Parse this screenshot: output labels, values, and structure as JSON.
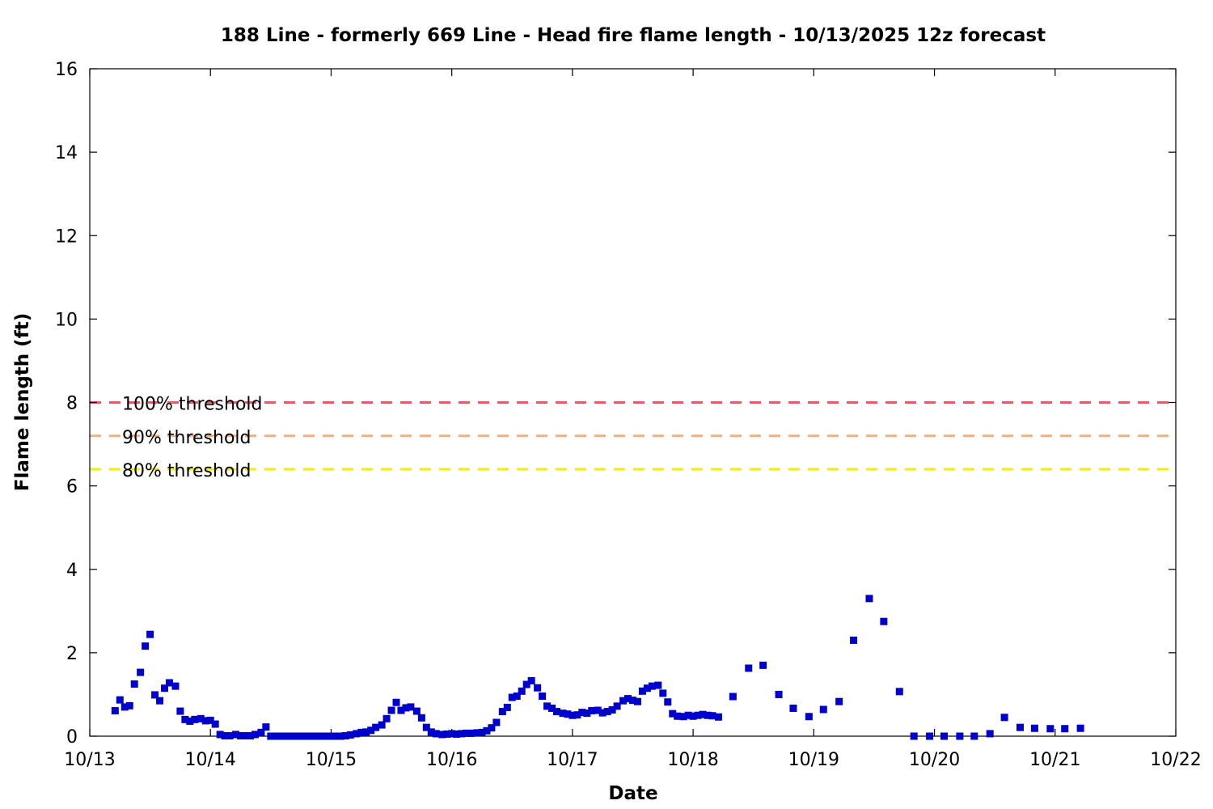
{
  "chart_data": {
    "type": "scatter",
    "title": "188 Line - formerly 669 Line - Head fire flame length - 10/13/2025 12z forecast",
    "xlabel": "Date",
    "ylabel": "Flame length (ft)",
    "xlim": [
      0,
      9
    ],
    "ylim": [
      0,
      16
    ],
    "x_ticks": [
      0,
      1,
      2,
      3,
      4,
      5,
      6,
      7,
      8,
      9
    ],
    "x_tick_labels": [
      "10/13",
      "10/14",
      "10/15",
      "10/16",
      "10/17",
      "10/18",
      "10/19",
      "10/20",
      "10/21",
      "10/22"
    ],
    "y_ticks": [
      0,
      2,
      4,
      6,
      8,
      10,
      12,
      14,
      16
    ],
    "y_tick_labels": [
      "0",
      "2",
      "4",
      "6",
      "8",
      "10",
      "12",
      "14",
      "16"
    ],
    "grid": false,
    "point_color": "#0000cc",
    "thresholds": [
      {
        "label": "100% threshold",
        "value": 8.0,
        "color": "#e05c6e"
      },
      {
        "label": "90% threshold",
        "value": 7.2,
        "color": "#f4b07a"
      },
      {
        "label": "80% threshold",
        "value": 6.4,
        "color": "#f0f000"
      }
    ],
    "points": [
      [
        0.21,
        0.61
      ],
      [
        0.25,
        0.87
      ],
      [
        0.29,
        0.7
      ],
      [
        0.33,
        0.73
      ],
      [
        0.37,
        1.25
      ],
      [
        0.42,
        1.53
      ],
      [
        0.46,
        2.16
      ],
      [
        0.5,
        2.44
      ],
      [
        0.54,
        0.99
      ],
      [
        0.58,
        0.85
      ],
      [
        0.62,
        1.15
      ],
      [
        0.66,
        1.28
      ],
      [
        0.71,
        1.2
      ],
      [
        0.75,
        0.6
      ],
      [
        0.79,
        0.4
      ],
      [
        0.83,
        0.36
      ],
      [
        0.87,
        0.4
      ],
      [
        0.92,
        0.42
      ],
      [
        0.96,
        0.37
      ],
      [
        1.0,
        0.38
      ],
      [
        1.04,
        0.29
      ],
      [
        1.08,
        0.04
      ],
      [
        1.12,
        0.01
      ],
      [
        1.16,
        0.01
      ],
      [
        1.21,
        0.04
      ],
      [
        1.25,
        0.01
      ],
      [
        1.29,
        0.01
      ],
      [
        1.33,
        0.01
      ],
      [
        1.37,
        0.04
      ],
      [
        1.42,
        0.09
      ],
      [
        1.46,
        0.22
      ],
      [
        1.5,
        0.0
      ],
      [
        1.54,
        0.0
      ],
      [
        1.58,
        0.0
      ],
      [
        1.62,
        0.0
      ],
      [
        1.66,
        0.0
      ],
      [
        1.71,
        0.0
      ],
      [
        1.75,
        0.0
      ],
      [
        1.79,
        0.0
      ],
      [
        1.83,
        0.0
      ],
      [
        1.87,
        0.0
      ],
      [
        1.92,
        0.0
      ],
      [
        1.96,
        0.0
      ],
      [
        2.0,
        0.0
      ],
      [
        2.04,
        0.0
      ],
      [
        2.08,
        0.0
      ],
      [
        2.12,
        0.01
      ],
      [
        2.16,
        0.03
      ],
      [
        2.21,
        0.06
      ],
      [
        2.25,
        0.09
      ],
      [
        2.29,
        0.1
      ],
      [
        2.33,
        0.14
      ],
      [
        2.37,
        0.21
      ],
      [
        2.42,
        0.27
      ],
      [
        2.46,
        0.42
      ],
      [
        2.5,
        0.62
      ],
      [
        2.54,
        0.81
      ],
      [
        2.58,
        0.62
      ],
      [
        2.62,
        0.68
      ],
      [
        2.66,
        0.7
      ],
      [
        2.71,
        0.6
      ],
      [
        2.75,
        0.44
      ],
      [
        2.79,
        0.21
      ],
      [
        2.83,
        0.1
      ],
      [
        2.87,
        0.06
      ],
      [
        2.92,
        0.04
      ],
      [
        2.96,
        0.05
      ],
      [
        3.0,
        0.06
      ],
      [
        3.04,
        0.05
      ],
      [
        3.08,
        0.06
      ],
      [
        3.12,
        0.07
      ],
      [
        3.16,
        0.07
      ],
      [
        3.21,
        0.08
      ],
      [
        3.25,
        0.09
      ],
      [
        3.29,
        0.13
      ],
      [
        3.33,
        0.2
      ],
      [
        3.37,
        0.33
      ],
      [
        3.42,
        0.59
      ],
      [
        3.46,
        0.69
      ],
      [
        3.5,
        0.93
      ],
      [
        3.54,
        0.96
      ],
      [
        3.58,
        1.08
      ],
      [
        3.62,
        1.24
      ],
      [
        3.66,
        1.33
      ],
      [
        3.71,
        1.16
      ],
      [
        3.75,
        0.96
      ],
      [
        3.79,
        0.72
      ],
      [
        3.83,
        0.67
      ],
      [
        3.87,
        0.59
      ],
      [
        3.92,
        0.55
      ],
      [
        3.96,
        0.53
      ],
      [
        4.0,
        0.5
      ],
      [
        4.04,
        0.51
      ],
      [
        4.08,
        0.57
      ],
      [
        4.12,
        0.55
      ],
      [
        4.16,
        0.61
      ],
      [
        4.21,
        0.62
      ],
      [
        4.25,
        0.56
      ],
      [
        4.29,
        0.59
      ],
      [
        4.33,
        0.63
      ],
      [
        4.37,
        0.72
      ],
      [
        4.42,
        0.85
      ],
      [
        4.46,
        0.9
      ],
      [
        4.5,
        0.86
      ],
      [
        4.54,
        0.83
      ],
      [
        4.58,
        1.08
      ],
      [
        4.62,
        1.15
      ],
      [
        4.66,
        1.2
      ],
      [
        4.71,
        1.22
      ],
      [
        4.75,
        1.03
      ],
      [
        4.79,
        0.82
      ],
      [
        4.83,
        0.54
      ],
      [
        4.87,
        0.48
      ],
      [
        4.92,
        0.47
      ],
      [
        4.96,
        0.5
      ],
      [
        5.0,
        0.48
      ],
      [
        5.04,
        0.5
      ],
      [
        5.08,
        0.52
      ],
      [
        5.12,
        0.5
      ],
      [
        5.16,
        0.49
      ],
      [
        5.21,
        0.46
      ],
      [
        5.33,
        0.95
      ],
      [
        5.46,
        1.63
      ],
      [
        5.58,
        1.7
      ],
      [
        5.71,
        1.0
      ],
      [
        5.83,
        0.67
      ],
      [
        5.96,
        0.47
      ],
      [
        6.08,
        0.64
      ],
      [
        6.21,
        0.83
      ],
      [
        6.33,
        2.3
      ],
      [
        6.46,
        3.3
      ],
      [
        6.58,
        2.75
      ],
      [
        6.71,
        1.07
      ],
      [
        6.83,
        0.0
      ],
      [
        6.96,
        0.0
      ],
      [
        7.08,
        0.0
      ],
      [
        7.21,
        0.0
      ],
      [
        7.33,
        0.0
      ],
      [
        7.46,
        0.06
      ],
      [
        7.58,
        0.45
      ],
      [
        7.71,
        0.21
      ],
      [
        7.83,
        0.19
      ],
      [
        7.96,
        0.18
      ],
      [
        8.08,
        0.18
      ],
      [
        8.21,
        0.19
      ]
    ]
  }
}
